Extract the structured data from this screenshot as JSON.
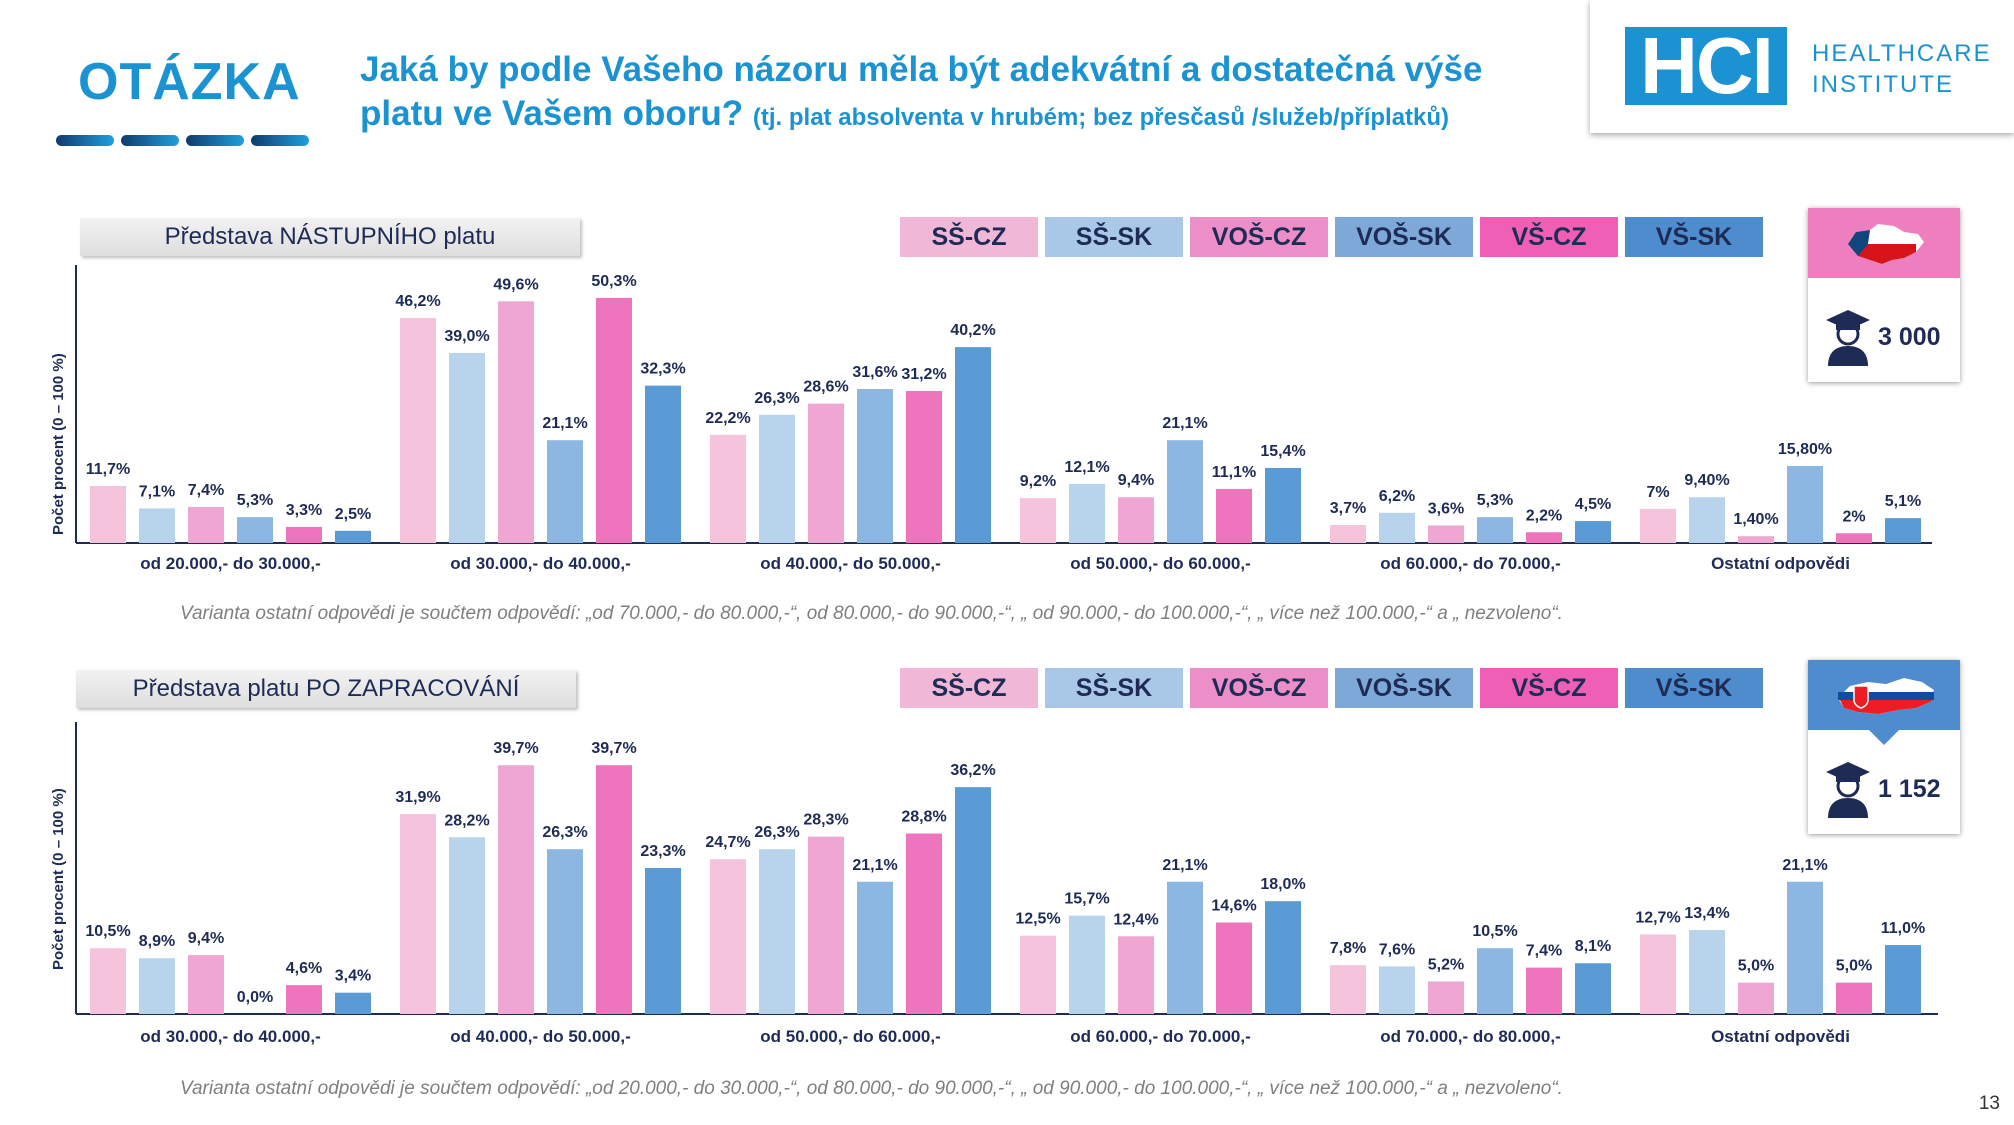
{
  "header": {
    "label": "OTÁZKA",
    "title_main": "Jaká by podle Vašeho názoru měla být adekvátní a dostatečná výše platu ve Vašem oboru?",
    "title_sub": "(tj. plat absolventa v hrubém; bez přesčasů /služeb/příplatků)",
    "logo_mark": "HCI",
    "logo_line1": "HEALTHCARE",
    "logo_line2": "INSTITUTE"
  },
  "legend": [
    "SŠ-CZ",
    "SŠ-SK",
    "VOŠ-CZ",
    "VOŠ-SK",
    "VŠ-CZ",
    "VŠ-SK"
  ],
  "colors": {
    "series": [
      "#f6c3dd",
      "#b8d3ec",
      "#f0a6d2",
      "#8db7e3",
      "#ee74bd",
      "#5b9bd5"
    ],
    "pills": [
      "#f1b7d6",
      "#a9c7e6",
      "#ec8fc8",
      "#7ea8d8",
      "#ef5fb5",
      "#4f8ccd"
    ],
    "brand": "#1b93d3",
    "cz_flag_bg": "#ef7ebf",
    "sk_flag_bg": "#4f8ccd",
    "text": "#1e2b55"
  },
  "sections": [
    {
      "label": "Představa NÁSTUPNÍHO platu",
      "respondents": "3 000",
      "flag": "czech-map-icon",
      "ylabel": "Počet procent  (0 – 100 %)",
      "note": "Varianta ostatní odpovědi je součtem odpovědí: „od 70.000,- do 80.000,-“, od 80.000,- do 90.000,-“, „ od 90.000,- do 100.000,-“, „ více než 100.000,-“ a „ nezvoleno“."
    },
    {
      "label": "Představa platu PO ZAPRACOVÁNÍ",
      "respondents": "1 152",
      "flag": "slovak-map-icon",
      "ylabel": "Počet procent  (0 – 100 %)",
      "note": "Varianta ostatní odpovědi je součtem odpovědí: „od 20.000,- do 30.000,-“, od 80.000,- do 90.000,-“, „ od 90.000,- do 100.000,-“, „ více než 100.000,-“ a „ nezvoleno“."
    }
  ],
  "chart_data": [
    {
      "type": "bar",
      "title": "Představa NÁSTUPNÍHO platu",
      "ylabel": "Počet procent  (0 – 100 %)",
      "ylim": [
        0,
        55
      ],
      "legend_position": "top-right",
      "categories": [
        "od 20.000,- do 30.000,-",
        "od 30.000,- do 40.000,-",
        "od 40.000,- do 50.000,-",
        "od 50.000,- do 60.000,-",
        "od 60.000,- do 70.000,-",
        "Ostatní odpovědi"
      ],
      "series": [
        {
          "name": "SŠ-CZ",
          "values": [
            11.7,
            46.2,
            22.2,
            9.2,
            3.7,
            7
          ],
          "labels": [
            "11,7%",
            "46,2%",
            "22,2%",
            "9,2%",
            "3,7%",
            "7%"
          ]
        },
        {
          "name": "SŠ-SK",
          "values": [
            7.1,
            39.0,
            26.3,
            12.1,
            6.2,
            9.4
          ],
          "labels": [
            "7,1%",
            "39,0%",
            "26,3%",
            "12,1%",
            "6,2%",
            "9,40%"
          ]
        },
        {
          "name": "VOŠ-CZ",
          "values": [
            7.4,
            49.6,
            28.6,
            9.4,
            3.6,
            1.4
          ],
          "labels": [
            "7,4%",
            "49,6%",
            "28,6%",
            "9,4%",
            "3,6%",
            "1,40%"
          ]
        },
        {
          "name": "VOŠ-SK",
          "values": [
            5.3,
            21.1,
            31.6,
            21.1,
            5.3,
            15.8
          ],
          "labels": [
            "5,3%",
            "21,1%",
            "31,6%",
            "21,1%",
            "5,3%",
            "15,80%"
          ]
        },
        {
          "name": "VŠ-CZ",
          "values": [
            3.3,
            50.3,
            31.2,
            11.1,
            2.2,
            2
          ],
          "labels": [
            "3,3%",
            "50,3%",
            "31,2%",
            "11,1%",
            "2,2%",
            "2%"
          ]
        },
        {
          "name": "VŠ-SK",
          "values": [
            2.5,
            32.3,
            40.2,
            15.4,
            4.5,
            5.1
          ],
          "labels": [
            "2,5%",
            "32,3%",
            "40,2%",
            "15,4%",
            "4,5%",
            "5,1%"
          ]
        }
      ]
    },
    {
      "type": "bar",
      "title": "Představa platu PO ZAPRACOVÁNÍ",
      "ylabel": "Počet procent  (0 – 100 %)",
      "ylim": [
        0,
        45
      ],
      "legend_position": "top-right",
      "categories": [
        "od 30.000,- do 40.000,-",
        "od 40.000,- do 50.000,-",
        "od 50.000,- do 60.000,-",
        "od 60.000,- do 70.000,-",
        "od 70.000,- do 80.000,-",
        "Ostatní odpovědi"
      ],
      "series": [
        {
          "name": "SŠ-CZ",
          "values": [
            10.5,
            31.9,
            24.7,
            12.5,
            7.8,
            12.7
          ],
          "labels": [
            "10,5%",
            "31,9%",
            "24,7%",
            "12,5%",
            "7,8%",
            "12,7%"
          ]
        },
        {
          "name": "SŠ-SK",
          "values": [
            8.9,
            28.2,
            26.3,
            15.7,
            7.6,
            13.4
          ],
          "labels": [
            "8,9%",
            "28,2%",
            "26,3%",
            "15,7%",
            "7,6%",
            "13,4%"
          ]
        },
        {
          "name": "VOŠ-CZ",
          "values": [
            9.4,
            39.7,
            28.3,
            12.4,
            5.2,
            5.0
          ],
          "labels": [
            "9,4%",
            "39,7%",
            "28,3%",
            "12,4%",
            "5,2%",
            "5,0%"
          ]
        },
        {
          "name": "VOŠ-SK",
          "values": [
            0.0,
            26.3,
            21.1,
            21.1,
            10.5,
            21.1
          ],
          "labels": [
            "0,0%",
            "26,3%",
            "21,1%",
            "21,1%",
            "10,5%",
            "21,1%"
          ]
        },
        {
          "name": "VŠ-CZ",
          "values": [
            4.6,
            39.7,
            28.8,
            14.6,
            7.4,
            5.0
          ],
          "labels": [
            "4,6%",
            "39,7%",
            "28,8%",
            "14,6%",
            "7,4%",
            "5,0%"
          ]
        },
        {
          "name": "VŠ-SK",
          "values": [
            3.4,
            23.3,
            36.2,
            18.0,
            8.1,
            11.0
          ],
          "labels": [
            "3,4%",
            "23,3%",
            "36,2%",
            "18,0%",
            "8,1%",
            "11,0%"
          ]
        }
      ]
    }
  ],
  "page_number": "13"
}
